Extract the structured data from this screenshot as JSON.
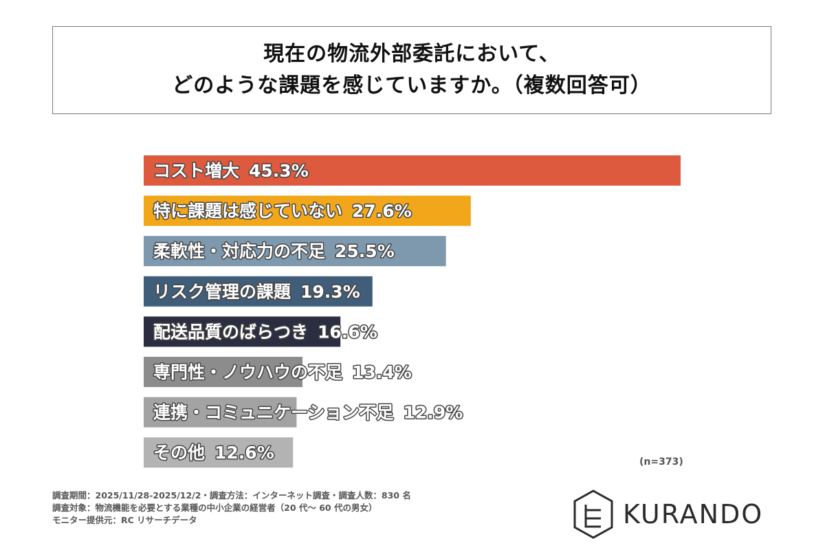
{
  "title": {
    "line1": "現在の物流外部委託において、",
    "line2": "どのような課題を感じていますか。（複数回答可）"
  },
  "chart_data": {
    "type": "bar",
    "orientation": "horizontal",
    "title": "現在の物流外部委託において、どのような課題を感じていますか。（複数回答可）",
    "categories": [
      "コスト増大",
      "特に課題は感じていない",
      "柔軟性・対応力の不足",
      "リスク管理の課題",
      "配送品質のばらつき",
      "専門性・ノウハウの不足",
      "連携・コミュニケーション不足",
      "その他"
    ],
    "values": [
      45.3,
      27.6,
      25.5,
      19.3,
      16.6,
      13.4,
      12.9,
      12.6
    ],
    "value_labels": [
      "45.3%",
      "27.6%",
      "25.5%",
      "19.3%",
      "16.6%",
      "13.4%",
      "12.9%",
      "12.6%"
    ],
    "colors": [
      "#dd5a3e",
      "#f2a71b",
      "#7e98ad",
      "#405d79",
      "#2b2e40",
      "#8c8c8c",
      "#a3a3a3",
      "#b3b3b3"
    ],
    "xlim": [
      0,
      45.3
    ],
    "grid": false,
    "legend": "none"
  },
  "sample_note": "(n=373)",
  "footnotes": [
    "調査期間：2025/11/28-2025/12/2・調査方法：インターネット調査・調査人数：830 名",
    "調査対象：物流機能を必要とする業種の中小企業の経営者（20 代〜 60 代の男女）",
    "モニター提供元：RC リサーチデータ"
  ],
  "logo": {
    "text": "KURANDO",
    "icon": "kurando-hexagon-logo-icon"
  }
}
